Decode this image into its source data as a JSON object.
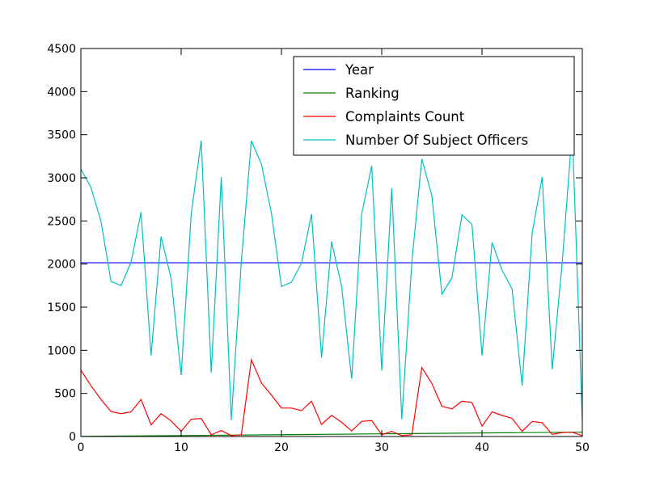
{
  "chart_data": {
    "type": "line",
    "title": "",
    "xlabel": "",
    "ylabel": "",
    "xlim": [
      0,
      50
    ],
    "ylim": [
      0,
      4500
    ],
    "xticks": [
      0,
      10,
      20,
      30,
      40,
      50
    ],
    "xtick_labels": [
      "0",
      "10",
      "20",
      "30",
      "40",
      "50"
    ],
    "yticks": [
      0,
      500,
      1000,
      1500,
      2000,
      2500,
      3000,
      3500,
      4000,
      4500
    ],
    "ytick_labels": [
      "0",
      "500",
      "1000",
      "1500",
      "2000",
      "2500",
      "3000",
      "3500",
      "4000",
      "4500"
    ],
    "grid": false,
    "legend_position": "top-right",
    "series": [
      {
        "name": "Year",
        "color": "#0000ff",
        "x": [
          0,
          50
        ],
        "y": [
          2015,
          2015
        ]
      },
      {
        "name": "Ranking",
        "color": "#008000",
        "x": [
          0,
          10,
          20,
          30,
          40,
          50
        ],
        "y": [
          1,
          11,
          21,
          31,
          41,
          51
        ]
      },
      {
        "name": "Complaints Count",
        "color": "#ff0000",
        "x": [
          0,
          1,
          2,
          3,
          4,
          5,
          6,
          7,
          8,
          9,
          10,
          11,
          12,
          13,
          14,
          15,
          16,
          17,
          18,
          19,
          20,
          21,
          22,
          23,
          24,
          25,
          26,
          27,
          28,
          29,
          30,
          31,
          32,
          33,
          34,
          35,
          36,
          37,
          38,
          39,
          40,
          41,
          42,
          43,
          44,
          45,
          46,
          47,
          48,
          49,
          50
        ],
        "y": [
          770,
          590,
          430,
          290,
          265,
          285,
          430,
          135,
          265,
          180,
          60,
          200,
          210,
          20,
          70,
          10,
          20,
          890,
          620,
          480,
          330,
          330,
          300,
          410,
          140,
          245,
          165,
          65,
          175,
          185,
          20,
          60,
          10,
          20,
          800,
          615,
          350,
          320,
          410,
          395,
          120,
          285,
          245,
          210,
          60,
          175,
          160,
          25,
          45,
          50,
          10
        ]
      },
      {
        "name": "Number Of Subject Officers",
        "color": "#00bfbf",
        "x": [
          0,
          1,
          2,
          3,
          4,
          5,
          6,
          7,
          8,
          9,
          10,
          11,
          12,
          13,
          14,
          15,
          16,
          17,
          18,
          19,
          20,
          21,
          22,
          23,
          24,
          25,
          26,
          27,
          28,
          29,
          30,
          31,
          32,
          33,
          34,
          35,
          36,
          37,
          38,
          39,
          40,
          41,
          42,
          43,
          44,
          45,
          46,
          47,
          48,
          49,
          50
        ],
        "y": [
          3100,
          2890,
          2500,
          1800,
          1750,
          2020,
          2600,
          940,
          2320,
          1830,
          710,
          2580,
          3430,
          740,
          3010,
          190,
          2030,
          3430,
          3160,
          2590,
          1740,
          1790,
          2010,
          2580,
          915,
          2260,
          1740,
          670,
          2580,
          3140,
          765,
          2880,
          200,
          2020,
          3220,
          2790,
          1650,
          1840,
          2570,
          2460,
          940,
          2250,
          1930,
          1710,
          590,
          2360,
          3010,
          780,
          2020,
          3560,
          190
        ]
      }
    ]
  }
}
